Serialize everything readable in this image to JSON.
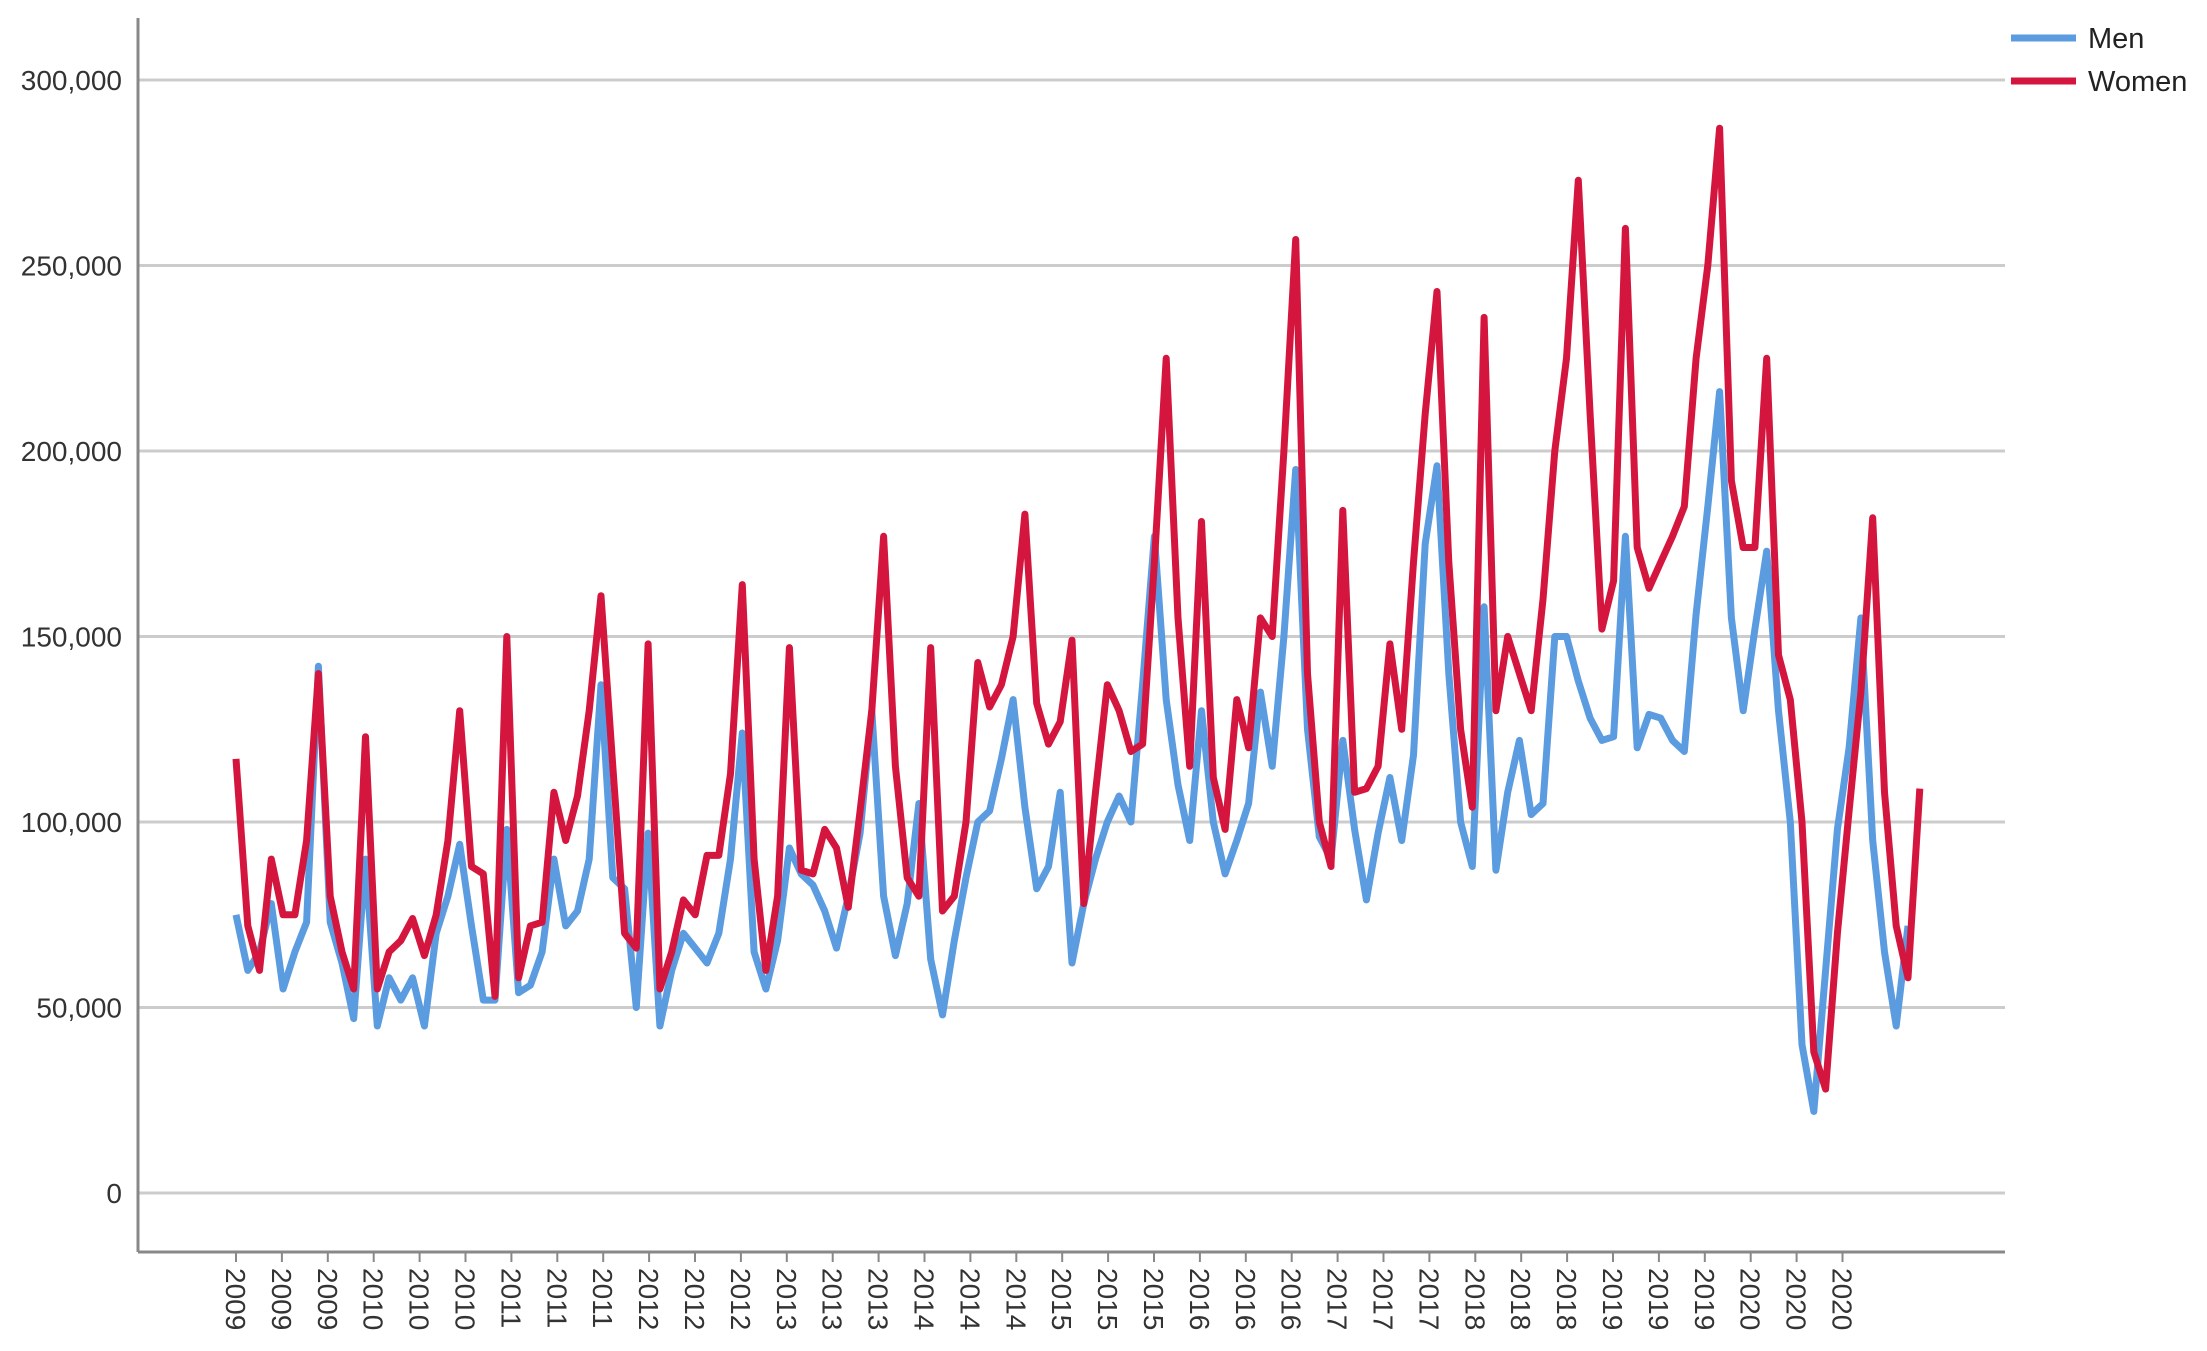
{
  "chart_data": {
    "type": "line",
    "title": "",
    "xlabel": "",
    "ylabel": "",
    "ylim": [
      0,
      300000
    ],
    "y_ticks": [
      0,
      50000,
      100000,
      150000,
      200000,
      250000,
      300000
    ],
    "y_tick_labels": [
      "0",
      "50,000",
      "100,000",
      "150,000",
      "200,000",
      "250,000",
      "300,000"
    ],
    "x_tick_labels": [
      "2009",
      "2009",
      "2009",
      "2010",
      "2010",
      "2010",
      "2011",
      "2011",
      "2011",
      "2012",
      "2012",
      "2012",
      "2013",
      "2013",
      "2013",
      "2014",
      "2014",
      "2014",
      "2015",
      "2015",
      "2015",
      "2016",
      "2016",
      "2016",
      "2017",
      "2017",
      "2017",
      "2018",
      "2018",
      "2018",
      "2019",
      "2019",
      "2019",
      "2020",
      "2020",
      "2020"
    ],
    "grid": true,
    "legend": "top-right",
    "series": [
      {
        "name": "Men",
        "color": "#5b9bdf",
        "values": [
          75000,
          60000,
          65000,
          78000,
          55000,
          65000,
          73000,
          142000,
          73000,
          62000,
          47000,
          90000,
          45000,
          58000,
          52000,
          58000,
          45000,
          70000,
          80000,
          94000,
          72000,
          52000,
          52000,
          98000,
          54000,
          56000,
          65000,
          90000,
          72000,
          76000,
          90000,
          137000,
          85000,
          82000,
          50000,
          97000,
          45000,
          60000,
          70000,
          66000,
          62000,
          70000,
          90000,
          124000,
          65000,
          55000,
          68000,
          93000,
          86000,
          83000,
          76000,
          66000,
          80000,
          97000,
          130000,
          80000,
          64000,
          78000,
          105000,
          63000,
          48000,
          68000,
          85000,
          100000,
          103000,
          117000,
          133000,
          104000,
          82000,
          88000,
          108000,
          62000,
          78000,
          90000,
          100000,
          107000,
          100000,
          137000,
          177000,
          133000,
          110000,
          95000,
          130000,
          100000,
          86000,
          95000,
          105000,
          135000,
          115000,
          150000,
          195000,
          125000,
          96000,
          90000,
          122000,
          98000,
          79000,
          97000,
          112000,
          95000,
          118000,
          175000,
          196000,
          140000,
          100000,
          88000,
          158000,
          87000,
          108000,
          122000,
          102000,
          105000,
          150000,
          150000,
          138000,
          128000,
          122000,
          123000,
          177000,
          120000,
          129000,
          128000,
          122000,
          119000,
          156000,
          185000,
          216000,
          155000,
          130000,
          152000,
          173000,
          130000,
          100000,
          40000,
          22000,
          60000,
          98000,
          120000,
          155000,
          95000,
          65000,
          45000,
          72000
        ]
      },
      {
        "name": "Women",
        "color": "#d4163e",
        "values": [
          117000,
          72000,
          60000,
          90000,
          75000,
          75000,
          95000,
          140000,
          80000,
          65000,
          55000,
          123000,
          55000,
          65000,
          68000,
          74000,
          64000,
          75000,
          95000,
          130000,
          88000,
          86000,
          53000,
          150000,
          58000,
          72000,
          73000,
          108000,
          95000,
          107000,
          130000,
          161000,
          115000,
          70000,
          66000,
          148000,
          55000,
          65000,
          79000,
          75000,
          91000,
          91000,
          113000,
          164000,
          90000,
          60000,
          80000,
          147000,
          87000,
          86000,
          98000,
          93000,
          77000,
          103000,
          130000,
          177000,
          115000,
          85000,
          80000,
          147000,
          76000,
          80000,
          100000,
          143000,
          131000,
          137000,
          150000,
          183000,
          132000,
          121000,
          127000,
          149000,
          78000,
          108000,
          137000,
          130000,
          119000,
          121000,
          170000,
          225000,
          155000,
          115000,
          181000,
          112000,
          98000,
          133000,
          120000,
          155000,
          150000,
          200000,
          257000,
          140000,
          100000,
          88000,
          184000,
          108000,
          109000,
          115000,
          148000,
          125000,
          170000,
          210000,
          243000,
          170000,
          125000,
          104000,
          236000,
          130000,
          150000,
          140000,
          130000,
          160000,
          200000,
          225000,
          273000,
          210000,
          152000,
          165000,
          260000,
          174000,
          163000,
          170000,
          177000,
          185000,
          225000,
          250000,
          287000,
          192000,
          174000,
          174000,
          225000,
          145000,
          133000,
          100000,
          38000,
          28000,
          70000,
          103000,
          135000,
          182000,
          108000,
          72000,
          58000,
          109000
        ]
      }
    ]
  }
}
